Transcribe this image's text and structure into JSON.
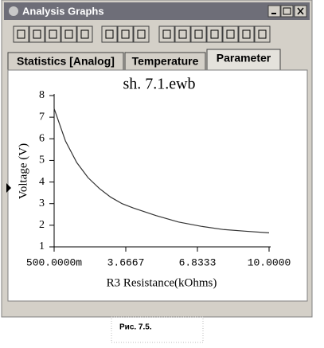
{
  "window": {
    "title": "Analysis Graphs",
    "tabs": [
      "Statistics [Analog]",
      "Temperature",
      "Parameter"
    ],
    "active_tab": 2
  },
  "chart_data": {
    "type": "line",
    "title": "sh. 7.1.ewb",
    "x_label": "R3 Resistance(kOhms)",
    "y_label": "Voltage (V)",
    "x": [
      0.5,
      1,
      1.5,
      2,
      2.5,
      3,
      3.5,
      4,
      5,
      6,
      7,
      8,
      9,
      10
    ],
    "series": [
      {
        "color": "#333333",
        "values": [
          7.4,
          5.9,
          4.9,
          4.2,
          3.7,
          3.3,
          3.0,
          2.8,
          2.45,
          2.15,
          1.95,
          1.8,
          1.72,
          1.65
        ]
      }
    ],
    "xlim": [
      0.5,
      10
    ],
    "xticks": [
      {
        "value": 0.5,
        "label": "500.0000m"
      },
      3.6667,
      6.8333,
      {
        "value": 10,
        "label": "10.0000"
      }
    ],
    "ylim": [
      1,
      8
    ],
    "yticks": [
      1,
      2,
      3,
      4,
      5,
      6,
      7,
      8
    ],
    "grid": false
  },
  "caption": "Рис. 7.5."
}
